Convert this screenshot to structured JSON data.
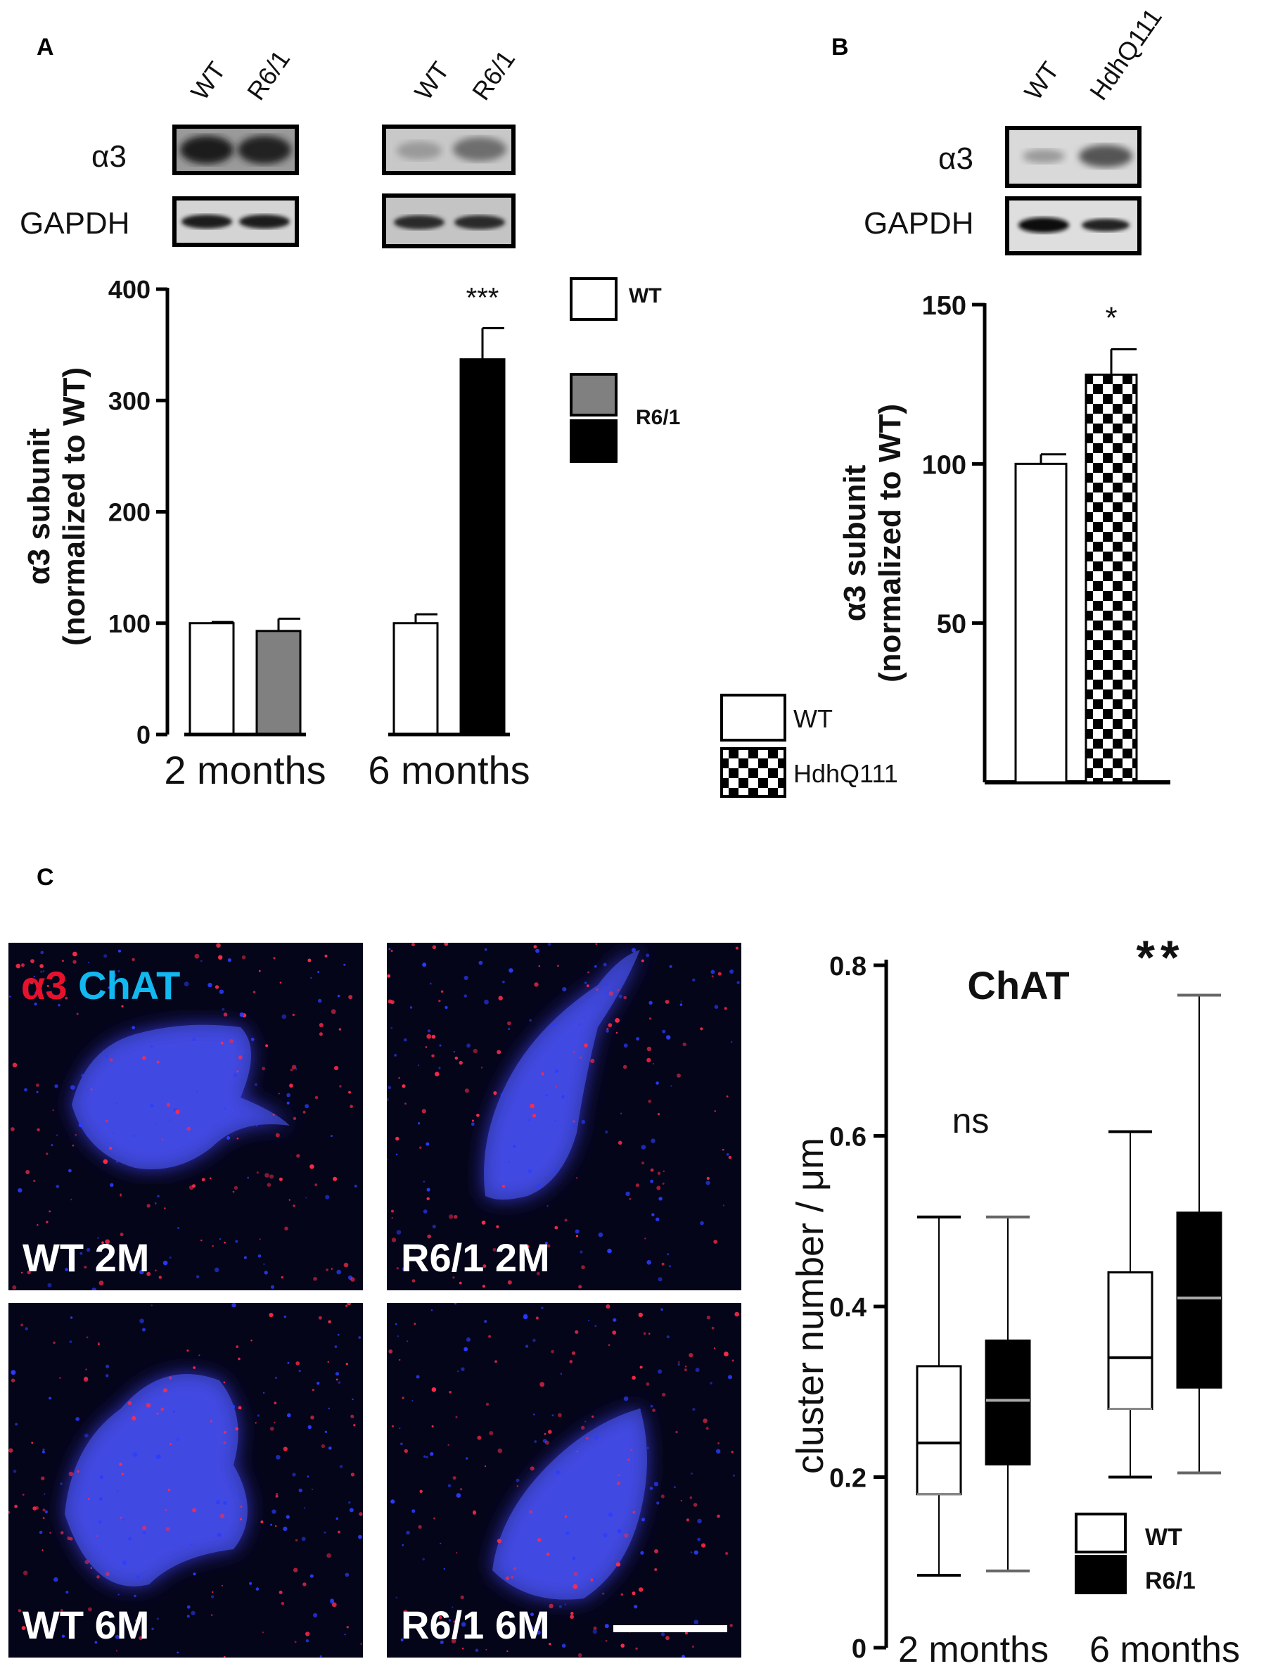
{
  "panels": {
    "a": {
      "letter": "A"
    },
    "b": {
      "letter": "B"
    },
    "c": {
      "letter": "C"
    }
  },
  "blot_a": {
    "group1_lanes": [
      "WT",
      "R6/1"
    ],
    "group2_lanes": [
      "WT",
      "R6/1"
    ],
    "row1": "α3",
    "row2": "GAPDH"
  },
  "blot_b": {
    "lanes": [
      "WT",
      "HdhQ111"
    ],
    "row1": "α3",
    "row2": "GAPDH"
  },
  "micro": {
    "stain_a3": "α3",
    "stain_chat": "ChAT",
    "tiles": [
      "WT 2M",
      "R6/1 2M",
      "WT 6M",
      "R6/1 6M"
    ]
  },
  "chart_data": [
    {
      "type": "bar",
      "ylabel_line1": "α3 subunit",
      "ylabel_line2": "(normalized to WT)",
      "ylim": [
        0,
        400
      ],
      "yticks": [
        0,
        100,
        200,
        300,
        400
      ],
      "categories": [
        "2 months",
        "6 months"
      ],
      "series": [
        {
          "name": "WT",
          "values": [
            100,
            100
          ],
          "errors": [
            1,
            8
          ],
          "color": "#ffffff"
        },
        {
          "name": "R6/1",
          "values": [
            93,
            337
          ],
          "errors": [
            11,
            28
          ],
          "colors": [
            "#808080",
            "#000000"
          ]
        }
      ],
      "annotations": [
        {
          "category": "6 months",
          "text": "***"
        }
      ],
      "legend": {
        "wt": "WT",
        "r61": "R6/1",
        "placement": "right"
      }
    },
    {
      "type": "bar",
      "ylabel_line1": "α3 subunit",
      "ylabel_line2": "(normalized to WT)",
      "ylim": [
        0,
        150
      ],
      "yticks": [
        50,
        100,
        150
      ],
      "categories": [
        "WT",
        "HdhQ111"
      ],
      "values": [
        100,
        128
      ],
      "errors": [
        3,
        8
      ],
      "fills": [
        "white",
        "checker"
      ],
      "annotations": [
        {
          "category": "HdhQ111",
          "text": "*"
        }
      ],
      "legend": {
        "wt": "WT",
        "hdh": "HdhQ111",
        "placement": "left"
      }
    },
    {
      "type": "box",
      "title": "ChAT",
      "ylabel": "cluster number / μm",
      "ylim": [
        0,
        0.8
      ],
      "yticks": [
        "0",
        "0.2",
        "0.4",
        "0.6",
        "0.8"
      ],
      "categories": [
        "2 months",
        "6 months"
      ],
      "series": [
        {
          "name": "WT",
          "boxes": [
            {
              "min": 0.085,
              "q1": 0.18,
              "median": 0.24,
              "q3": 0.33,
              "max": 0.505
            },
            {
              "min": 0.2,
              "q1": 0.28,
              "median": 0.34,
              "q3": 0.44,
              "max": 0.605
            }
          ]
        },
        {
          "name": "R6/1",
          "boxes": [
            {
              "min": 0.09,
              "q1": 0.215,
              "median": 0.29,
              "q3": 0.36,
              "max": 0.505
            },
            {
              "min": 0.205,
              "q1": 0.305,
              "median": 0.41,
              "q3": 0.51,
              "max": 0.765
            }
          ]
        }
      ],
      "annotations": [
        {
          "category": "2 months",
          "text": "ns"
        },
        {
          "category": "6 months",
          "text": "**"
        }
      ],
      "legend": {
        "wt": "WT",
        "r61": "R6/1",
        "placement": "bottom-right"
      }
    }
  ]
}
